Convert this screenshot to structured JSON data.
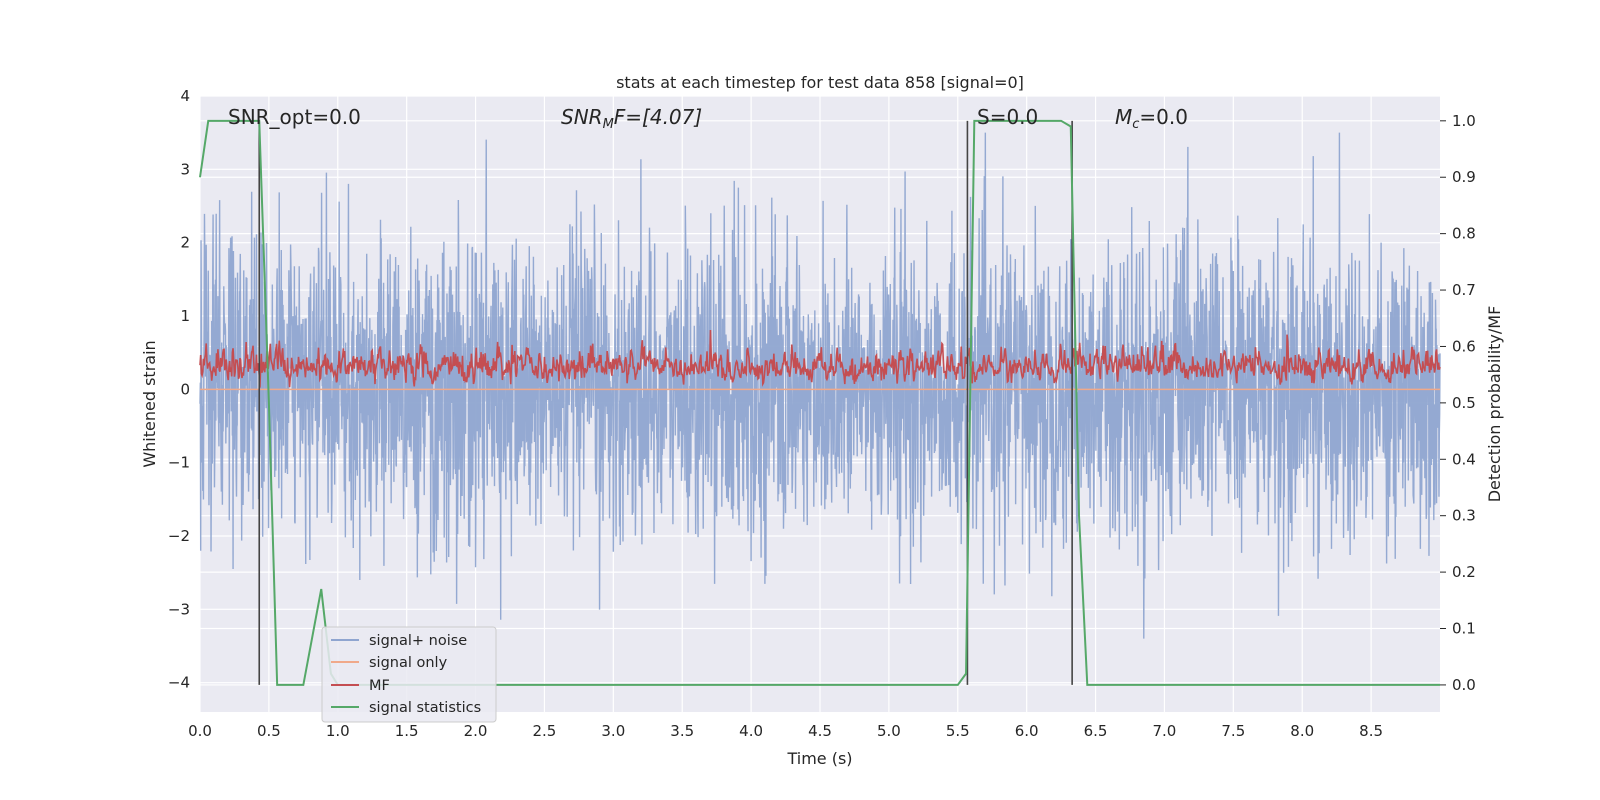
{
  "chart_data": {
    "type": "line",
    "title": "stats at each timestep for test data 858 [signal=0]",
    "xlabel": "Time (s)",
    "ylabel": "Whitened strain",
    "y2label": "Detection probability/MF",
    "xlim": [
      0.0,
      9.0
    ],
    "ylim": [
      -4.4,
      4.0
    ],
    "y2lim": [
      -0.048,
      1.044
    ],
    "x_ticks": [
      "0.0",
      "0.5",
      "1.0",
      "1.5",
      "2.0",
      "2.5",
      "3.0",
      "3.5",
      "4.0",
      "4.5",
      "5.0",
      "5.5",
      "6.0",
      "6.5",
      "7.0",
      "7.5",
      "8.0",
      "8.5"
    ],
    "y_ticks": [
      "4",
      "3",
      "2",
      "1",
      "0",
      "−1",
      "−2",
      "−3",
      "−4"
    ],
    "y2_ticks": [
      "1.0",
      "0.9",
      "0.8",
      "0.7",
      "0.6",
      "0.5",
      "0.4",
      "0.3",
      "0.2",
      "0.1",
      "0.0"
    ],
    "grid": true,
    "legend_placement": "lower-left",
    "annotations": {
      "snr_opt": "SNR_opt=0.0",
      "snr_mf_base": "SNR",
      "snr_mf_sub": "M",
      "snr_mf_rest": "F=[4.07]",
      "s_label": "S=0.0",
      "mc_base": "M",
      "mc_sub": "c",
      "mc_rest": "=0.0"
    },
    "detection_markers_x": [
      0.43,
      5.57,
      6.33
    ],
    "series": [
      {
        "name": "signal+ noise",
        "color": "#8fa5d0",
        "description_range": [
          -4.0,
          3.5
        ],
        "typical_amplitude": 1.0
      },
      {
        "name": "signal only",
        "color": "#f0a98a",
        "values_constant": 0.0
      },
      {
        "name": "MF",
        "color": "#c44e52",
        "range": [
          0.0,
          0.85
        ]
      },
      {
        "name": "signal statistics",
        "color": "#55a868",
        "axis": "right",
        "x": [
          0.0,
          0.06,
          0.43,
          0.5,
          0.56,
          0.75,
          0.88,
          0.95,
          1.0,
          5.5,
          5.56,
          5.62,
          6.25,
          6.32,
          6.38,
          6.44,
          9.0
        ],
        "values": [
          0.9,
          1.0,
          1.0,
          0.5,
          0.0,
          0.0,
          0.17,
          0.02,
          0.0,
          0.0,
          0.02,
          1.0,
          1.0,
          0.99,
          0.3,
          0.0,
          0.0
        ]
      }
    ]
  }
}
